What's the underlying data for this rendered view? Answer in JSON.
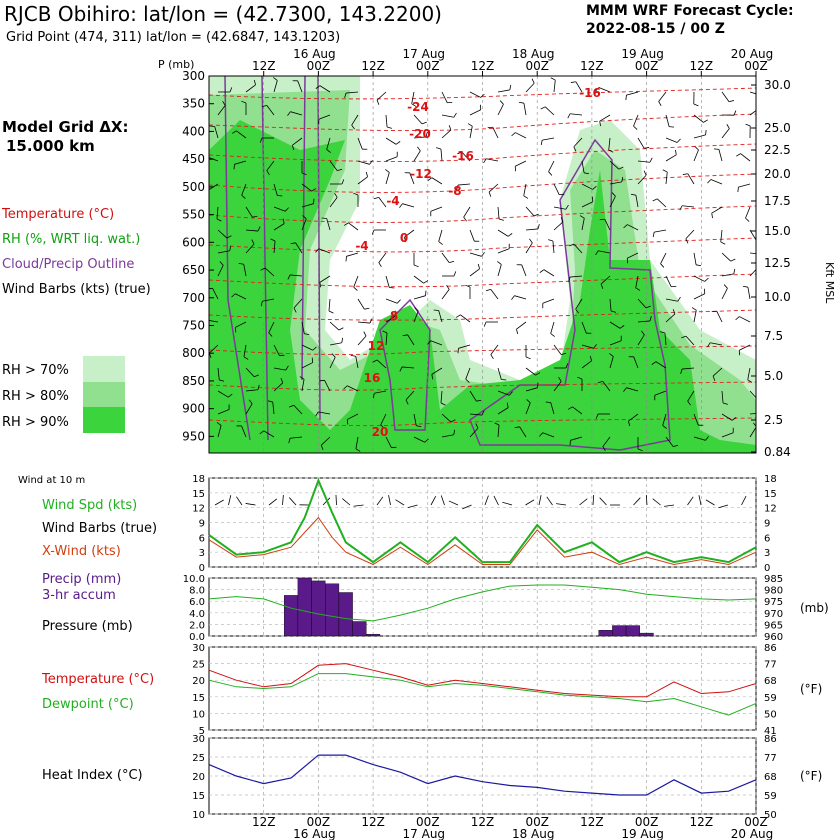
{
  "header": {
    "title": "RJCB Obihiro:  lat/lon = (42.7300, 143.2200)",
    "subtitle": "Grid Point (474, 311) lat/lon = (42.6847, 143.1203)",
    "cycle_line1": "MMM WRF Forecast Cycle:",
    "cycle_line2": "2022-08-15 / 00  Z"
  },
  "sidebar": {
    "model_grid_line1": "Model Grid ΔX:",
    "model_grid_line2": "15.000 km",
    "legend": [
      {
        "label": "Temperature (°C)",
        "color": "#d01010"
      },
      {
        "label": "RH (%, WRT liq. wat.)",
        "color": "#10a010"
      },
      {
        "label": "Cloud/Precip Outline",
        "color": "#7a3a9a"
      },
      {
        "label": "Wind Barbs (kts) (true)",
        "color": "#000000"
      }
    ],
    "rh_key": [
      {
        "label": "RH > 70%",
        "color": "#c8f0c8"
      },
      {
        "label": "RH > 80%",
        "color": "#90e090"
      },
      {
        "label": "RH > 90%",
        "color": "#3cd43c"
      }
    ],
    "wind10m_label": "Wind at 10 m",
    "wind_legend": [
      {
        "label": "Wind Spd (kts)",
        "color": "#20b020"
      },
      {
        "label": "Wind Barbs (true)",
        "color": "#000000"
      },
      {
        "label": "X-Wind (kts)",
        "color": "#d04010"
      }
    ],
    "precip_legend": [
      {
        "label": "Precip (mm)",
        "color": "#5a1a8a"
      },
      {
        "label": "3-hr accum",
        "color": "#5a1a8a"
      },
      {
        "label": "Pressure (mb)",
        "color": "#20b020"
      }
    ],
    "temp_legend": [
      {
        "label": "Temperature (°C)",
        "color": "#d01010"
      },
      {
        "label": "Dewpoint (°C)",
        "color": "#20b020"
      }
    ],
    "heat_legend": [
      {
        "label": "Heat Index (°C)",
        "color": "#1a1aa0"
      }
    ]
  },
  "time_axis": {
    "top_dates": [
      "16 Aug",
      "17 Aug",
      "18 Aug",
      "19 Aug",
      "20 Aug"
    ],
    "hour_labels": [
      "12Z",
      "00Z",
      "12Z",
      "00Z",
      "12Z",
      "00Z",
      "12Z",
      "00Z",
      "12Z",
      "00Z"
    ]
  },
  "chart_data": [
    {
      "type": "heatmap",
      "name": "cross-section",
      "xlabel": "",
      "ylabel": "P (mb)",
      "y_right_label": "Kft MSL",
      "pressure_ticks": [
        300,
        350,
        400,
        450,
        500,
        550,
        600,
        650,
        700,
        750,
        800,
        850,
        900,
        950
      ],
      "height_ticks": [
        "30.0",
        "25.0",
        "22.5",
        "20.0",
        "17.5",
        "15.0",
        "12.5",
        "10.0",
        "7.5",
        "5.0",
        "2.5",
        "0.84"
      ],
      "temperature_labels": [
        "-24",
        "-20",
        "-16",
        "-12",
        "-8",
        "-4",
        "0",
        "-4",
        "8",
        "12",
        "16",
        "20",
        "-16"
      ]
    },
    {
      "type": "line",
      "name": "wind",
      "ylim": [
        0,
        18
      ],
      "yticks": [
        0,
        3,
        6,
        9,
        12,
        15,
        18
      ],
      "x_hours": [
        0,
        6,
        12,
        18,
        21,
        24,
        27,
        30,
        36,
        42,
        48,
        54,
        60,
        66,
        72,
        78,
        84,
        90,
        96,
        102,
        108,
        114,
        120
      ],
      "series": [
        {
          "name": "Wind Spd (kts)",
          "color": "#20b020",
          "values": [
            6.5,
            2.5,
            3,
            5,
            10,
            17.5,
            11,
            5,
            1,
            5,
            1,
            6,
            1,
            1,
            8.5,
            3,
            5,
            1,
            3,
            1,
            2,
            1,
            4
          ]
        },
        {
          "name": "X-Wind (kts)",
          "color": "#d04010",
          "values": [
            5.5,
            2,
            2.5,
            4,
            7,
            10,
            6,
            3,
            0.5,
            4,
            0.5,
            4.5,
            0.5,
            0.5,
            7.5,
            2,
            3,
            0.5,
            2,
            0.5,
            1.5,
            0.5,
            3
          ]
        }
      ]
    },
    {
      "type": "bar",
      "name": "precip",
      "ylim": [
        0,
        10
      ],
      "yticks": [
        "0.0",
        "2.0",
        "4.0",
        "6.0",
        "8.0",
        "10.0"
      ],
      "y2_ticks": [
        960,
        965,
        970,
        975,
        980,
        985
      ],
      "y2_label": "(mb)",
      "bars": [
        {
          "x_hour": 18,
          "value": 7
        },
        {
          "x_hour": 21,
          "value": 10
        },
        {
          "x_hour": 24,
          "value": 9.5
        },
        {
          "x_hour": 27,
          "value": 9
        },
        {
          "x_hour": 30,
          "value": 7.5
        },
        {
          "x_hour": 33,
          "value": 2.5
        },
        {
          "x_hour": 36,
          "value": 0.3
        },
        {
          "x_hour": 87,
          "value": 1
        },
        {
          "x_hour": 90,
          "value": 1.8
        },
        {
          "x_hour": 93,
          "value": 1.8
        },
        {
          "x_hour": 96,
          "value": 0.5
        }
      ],
      "pressure_series": {
        "name": "Pressure (mb)",
        "color": "#20b020",
        "x_hours": [
          0,
          6,
          12,
          18,
          24,
          30,
          36,
          42,
          48,
          54,
          60,
          66,
          72,
          78,
          84,
          90,
          96,
          102,
          108,
          114,
          120
        ],
        "values": [
          976,
          977,
          976,
          972,
          969.5,
          967.5,
          966.5,
          969,
          972,
          976,
          979,
          981.5,
          982,
          982,
          981,
          980,
          978,
          977,
          976,
          975.5,
          976
        ]
      }
    },
    {
      "type": "line",
      "name": "temperature",
      "ylim": [
        5,
        30
      ],
      "yticks": [
        5,
        10,
        15,
        20,
        25,
        30
      ],
      "y2_ticks": [
        41,
        50,
        59,
        68,
        77,
        86
      ],
      "y2_label": "(°F)",
      "x_hours": [
        0,
        6,
        12,
        18,
        24,
        30,
        36,
        42,
        48,
        54,
        60,
        66,
        72,
        78,
        84,
        90,
        96,
        102,
        108,
        114,
        120
      ],
      "series": [
        {
          "name": "Temperature (°C)",
          "color": "#d01010",
          "values": [
            23,
            20,
            18,
            19,
            24.5,
            25,
            23,
            21,
            18.5,
            20,
            19,
            18,
            17,
            16,
            15.5,
            15,
            15,
            19.5,
            16,
            16.5,
            19
          ]
        },
        {
          "name": "Dewpoint (°C)",
          "color": "#20b020",
          "values": [
            20,
            18,
            17.5,
            18,
            22,
            22,
            21,
            20,
            18,
            19,
            18.5,
            17.5,
            16.5,
            15.5,
            15,
            14.5,
            13.5,
            14.5,
            12,
            9.5,
            13
          ]
        }
      ]
    },
    {
      "type": "line",
      "name": "heat-index",
      "ylim": [
        10,
        30
      ],
      "yticks": [
        10,
        15,
        20,
        25,
        30
      ],
      "y2_ticks": [
        50,
        59,
        68,
        77,
        86
      ],
      "y2_label": "(°F)",
      "x_hours": [
        0,
        6,
        12,
        18,
        24,
        30,
        36,
        42,
        48,
        54,
        60,
        66,
        72,
        78,
        84,
        90,
        96,
        102,
        108,
        114,
        120
      ],
      "series": [
        {
          "name": "Heat Index (°C)",
          "color": "#1a1aa0",
          "values": [
            23,
            20,
            18,
            19.5,
            25.5,
            25.5,
            23,
            21,
            18,
            20,
            18.5,
            17.5,
            17,
            16,
            15.5,
            15,
            15,
            19,
            15.5,
            16,
            19
          ]
        }
      ]
    }
  ]
}
